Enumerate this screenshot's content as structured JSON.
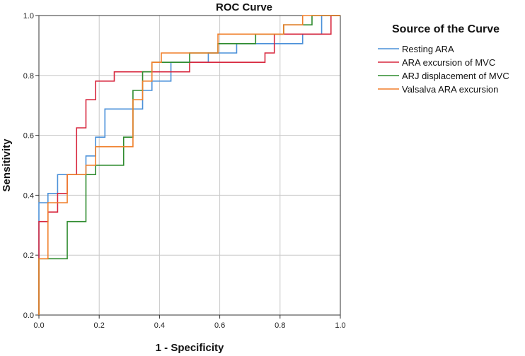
{
  "chart_data": {
    "type": "line",
    "title": "ROC Curve",
    "xlabel": "1 - Specificity",
    "ylabel": "Sensitivity",
    "xlim": [
      0,
      1
    ],
    "ylim": [
      0,
      1
    ],
    "x_ticks": [
      "0.0",
      "0.2",
      "0.4",
      "0.6",
      "0.8",
      "1.0"
    ],
    "y_ticks": [
      "0.0",
      "0.2",
      "0.4",
      "0.6",
      "0.8",
      "1.0"
    ],
    "grid": true,
    "legend": {
      "title": "Source of the Curve",
      "placement": "right"
    },
    "series": [
      {
        "name": "Resting ARA",
        "color": "#4a90d9",
        "points": [
          [
            0,
            0
          ],
          [
            0,
            0.375
          ],
          [
            0.03,
            0.375
          ],
          [
            0.03,
            0.406
          ],
          [
            0.062,
            0.406
          ],
          [
            0.062,
            0.469
          ],
          [
            0.156,
            0.469
          ],
          [
            0.156,
            0.531
          ],
          [
            0.188,
            0.531
          ],
          [
            0.188,
            0.594
          ],
          [
            0.219,
            0.594
          ],
          [
            0.219,
            0.688
          ],
          [
            0.344,
            0.688
          ],
          [
            0.344,
            0.75
          ],
          [
            0.375,
            0.75
          ],
          [
            0.375,
            0.781
          ],
          [
            0.438,
            0.781
          ],
          [
            0.438,
            0.844
          ],
          [
            0.562,
            0.844
          ],
          [
            0.562,
            0.875
          ],
          [
            0.656,
            0.875
          ],
          [
            0.656,
            0.906
          ],
          [
            0.875,
            0.906
          ],
          [
            0.875,
            0.938
          ],
          [
            0.938,
            0.938
          ],
          [
            0.938,
            1.0
          ],
          [
            1.0,
            1.0
          ]
        ]
      },
      {
        "name": "ARA excursion of MVC",
        "color": "#d7263d",
        "points": [
          [
            0,
            0
          ],
          [
            0,
            0.312
          ],
          [
            0.03,
            0.312
          ],
          [
            0.03,
            0.344
          ],
          [
            0.062,
            0.344
          ],
          [
            0.062,
            0.406
          ],
          [
            0.094,
            0.406
          ],
          [
            0.094,
            0.469
          ],
          [
            0.125,
            0.469
          ],
          [
            0.125,
            0.625
          ],
          [
            0.156,
            0.625
          ],
          [
            0.156,
            0.719
          ],
          [
            0.188,
            0.719
          ],
          [
            0.188,
            0.781
          ],
          [
            0.25,
            0.781
          ],
          [
            0.25,
            0.812
          ],
          [
            0.5,
            0.812
          ],
          [
            0.5,
            0.844
          ],
          [
            0.75,
            0.844
          ],
          [
            0.75,
            0.875
          ],
          [
            0.781,
            0.875
          ],
          [
            0.781,
            0.938
          ],
          [
            0.969,
            0.938
          ],
          [
            0.969,
            1.0
          ],
          [
            1.0,
            1.0
          ]
        ]
      },
      {
        "name": "ARJ displacement of MVC",
        "color": "#2e8b2e",
        "points": [
          [
            0,
            0
          ],
          [
            0,
            0.188
          ],
          [
            0.094,
            0.188
          ],
          [
            0.094,
            0.312
          ],
          [
            0.156,
            0.312
          ],
          [
            0.156,
            0.469
          ],
          [
            0.188,
            0.469
          ],
          [
            0.188,
            0.5
          ],
          [
            0.281,
            0.5
          ],
          [
            0.281,
            0.594
          ],
          [
            0.312,
            0.594
          ],
          [
            0.312,
            0.75
          ],
          [
            0.344,
            0.75
          ],
          [
            0.344,
            0.812
          ],
          [
            0.375,
            0.812
          ],
          [
            0.375,
            0.844
          ],
          [
            0.5,
            0.844
          ],
          [
            0.5,
            0.875
          ],
          [
            0.594,
            0.875
          ],
          [
            0.594,
            0.906
          ],
          [
            0.719,
            0.906
          ],
          [
            0.719,
            0.938
          ],
          [
            0.812,
            0.938
          ],
          [
            0.812,
            0.969
          ],
          [
            0.906,
            0.969
          ],
          [
            0.906,
            1.0
          ],
          [
            1.0,
            1.0
          ]
        ]
      },
      {
        "name": "Valsalva ARA excursion",
        "color": "#f07f2a",
        "points": [
          [
            0,
            0
          ],
          [
            0,
            0.188
          ],
          [
            0.03,
            0.188
          ],
          [
            0.03,
            0.375
          ],
          [
            0.094,
            0.375
          ],
          [
            0.094,
            0.469
          ],
          [
            0.156,
            0.469
          ],
          [
            0.156,
            0.5
          ],
          [
            0.188,
            0.5
          ],
          [
            0.188,
            0.562
          ],
          [
            0.312,
            0.562
          ],
          [
            0.312,
            0.719
          ],
          [
            0.344,
            0.719
          ],
          [
            0.344,
            0.781
          ],
          [
            0.375,
            0.781
          ],
          [
            0.375,
            0.844
          ],
          [
            0.406,
            0.844
          ],
          [
            0.406,
            0.875
          ],
          [
            0.594,
            0.875
          ],
          [
            0.594,
            0.938
          ],
          [
            0.812,
            0.938
          ],
          [
            0.812,
            0.969
          ],
          [
            0.875,
            0.969
          ],
          [
            0.875,
            1.0
          ],
          [
            1.0,
            1.0
          ]
        ]
      }
    ]
  }
}
